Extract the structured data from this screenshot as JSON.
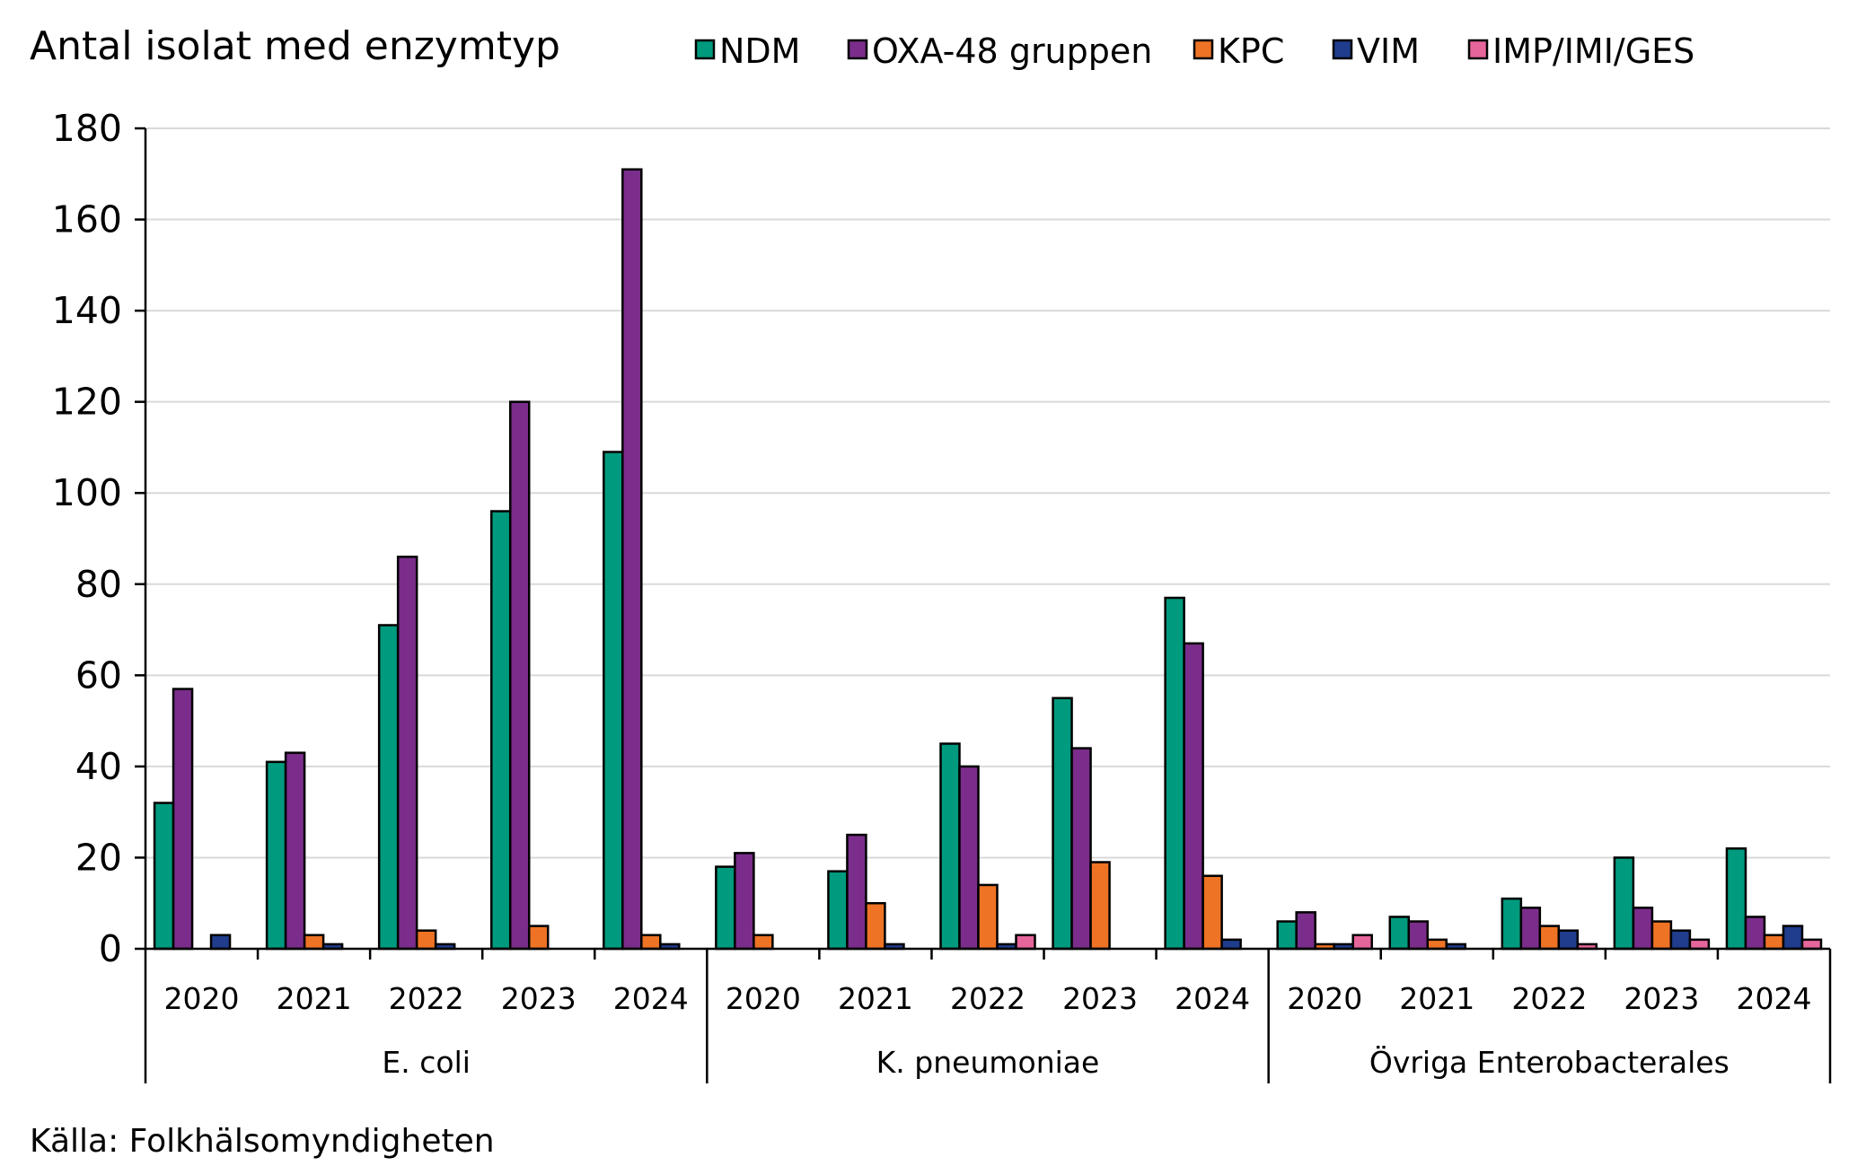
{
  "chart_data": {
    "type": "bar",
    "ylabel": "Antal isolat med enzymtyp",
    "source": "Källa: Folkhälsomyndigheten",
    "ylim": [
      0,
      180
    ],
    "yticks": [
      0,
      20,
      40,
      60,
      80,
      100,
      120,
      140,
      160,
      180
    ],
    "grid": true,
    "legend_position": "top",
    "groups": [
      "E. coli",
      "K. pneumoniae",
      "Övriga Enterobacterales"
    ],
    "years": [
      "2020",
      "2021",
      "2022",
      "2023",
      "2024"
    ],
    "series": [
      {
        "name": "NDM",
        "color": "#009a7e",
        "values": [
          [
            32,
            41,
            71,
            96,
            109
          ],
          [
            18,
            17,
            45,
            55,
            77
          ],
          [
            6,
            7,
            11,
            20,
            22
          ]
        ]
      },
      {
        "name": "OXA-48 gruppen",
        "color": "#7b2d8b",
        "values": [
          [
            57,
            43,
            86,
            120,
            171
          ],
          [
            21,
            25,
            40,
            44,
            67
          ],
          [
            8,
            6,
            9,
            9,
            7
          ]
        ]
      },
      {
        "name": "KPC",
        "color": "#ee7325",
        "values": [
          [
            0,
            3,
            4,
            5,
            3
          ],
          [
            3,
            10,
            14,
            19,
            16
          ],
          [
            1,
            2,
            5,
            6,
            3
          ]
        ]
      },
      {
        "name": "VIM",
        "color": "#1f3d8c",
        "values": [
          [
            3,
            1,
            1,
            0,
            1
          ],
          [
            0,
            1,
            1,
            0,
            2
          ],
          [
            1,
            1,
            4,
            4,
            5
          ]
        ]
      },
      {
        "name": "IMP/IMI/GES",
        "color": "#e6659b",
        "values": [
          [
            0,
            0,
            0,
            0,
            0
          ],
          [
            0,
            0,
            3,
            0,
            0
          ],
          [
            3,
            0,
            1,
            2,
            2
          ]
        ]
      }
    ]
  }
}
